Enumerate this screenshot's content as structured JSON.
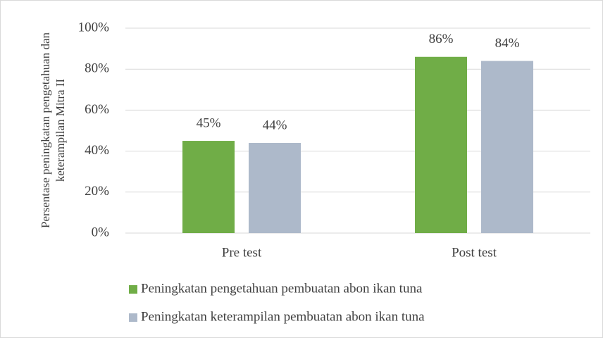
{
  "chart_data": {
    "type": "bar",
    "y_label": [
      "Persentase peningkatan pengetahuan dan",
      "keterampilan Mitra II"
    ],
    "categories": [
      "Pre test",
      "Post test"
    ],
    "series": [
      {
        "name": "Peningkatan pengetahuan pembuatan abon ikan tuna",
        "color": "#70ad47",
        "values": [
          45,
          86
        ],
        "value_labels": [
          "45%",
          "86%"
        ]
      },
      {
        "name": "Peningkatan keterampilan pembuatan abon ikan tuna",
        "color": "#adb9ca",
        "values": [
          44,
          84
        ],
        "value_labels": [
          "44%",
          "84%"
        ]
      }
    ],
    "ylim": [
      0,
      100
    ],
    "yticks": [
      {
        "value": 0,
        "label": "0%"
      },
      {
        "value": 20,
        "label": "20%"
      },
      {
        "value": 40,
        "label": "40%"
      },
      {
        "value": 60,
        "label": "60%"
      },
      {
        "value": 80,
        "label": "80%"
      },
      {
        "value": 100,
        "label": "100%"
      }
    ],
    "grid": true,
    "legend": "bottom"
  }
}
